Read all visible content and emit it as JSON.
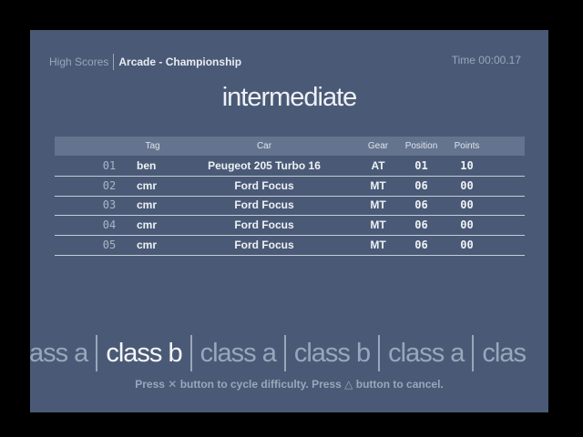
{
  "header": {
    "section": "High Scores",
    "mode": "Arcade - Championship",
    "time_label": "Time",
    "time": "00:00.17"
  },
  "difficulty": "intermediate",
  "table": {
    "columns": [
      "",
      "Tag",
      "Car",
      "Gear",
      "Position",
      "Points"
    ],
    "rows": [
      {
        "rank": "01",
        "tag": "ben",
        "car": "Peugeot 205 Turbo 16",
        "gear": "AT",
        "position": "01",
        "points": "10"
      },
      {
        "rank": "02",
        "tag": "cmr",
        "car": "Ford Focus",
        "gear": "MT",
        "position": "06",
        "points": "00"
      },
      {
        "rank": "03",
        "tag": "cmr",
        "car": "Ford Focus",
        "gear": "MT",
        "position": "06",
        "points": "00"
      },
      {
        "rank": "04",
        "tag": "cmr",
        "car": "Ford Focus",
        "gear": "MT",
        "position": "06",
        "points": "00"
      },
      {
        "rank": "05",
        "tag": "cmr",
        "car": "Ford Focus",
        "gear": "MT",
        "position": "06",
        "points": "00"
      }
    ]
  },
  "classes": [
    "ass a",
    "class b",
    "class a",
    "class b",
    "class a",
    "clas"
  ],
  "selected_class": 1,
  "hint": {
    "pre": "Press",
    "cross": "✕",
    "mid": "button to cycle difficulty.  Press",
    "triangle": "△",
    "post": "button to cancel."
  }
}
